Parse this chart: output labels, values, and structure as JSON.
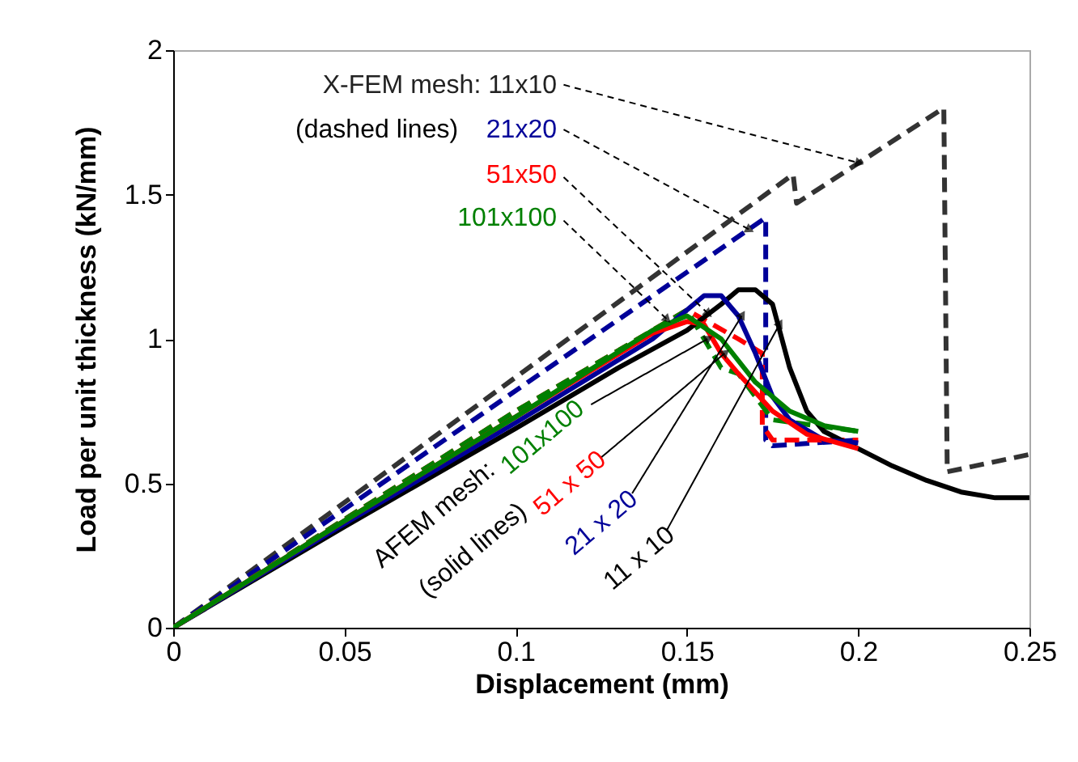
{
  "chart_data": {
    "type": "line",
    "xlabel": "Displacement (mm)",
    "ylabel": "Load per unit thickness (kN/mm)",
    "xlim": [
      0,
      0.25
    ],
    "xticks": [
      0,
      0.05,
      0.1,
      0.15,
      0.2,
      0.25
    ],
    "ylim": [
      0,
      2
    ],
    "yticks": [
      0,
      0.5,
      1,
      1.5,
      2
    ],
    "series": [
      {
        "color": "#333333",
        "line_style": "dashed",
        "x": [
          0,
          0.181,
          0.182,
          0.225,
          0.226,
          0.25
        ],
        "values": [
          0,
          1.57,
          1.47,
          1.8,
          0.54,
          0.6
        ]
      },
      {
        "color": "#000099",
        "line_style": "dashed",
        "x": [
          0,
          0.173,
          0.173,
          0.175,
          0.2
        ],
        "values": [
          0,
          1.42,
          0.65,
          0.63,
          0.65
        ]
      },
      {
        "color": "#ff0000",
        "line_style": "dashed",
        "x": [
          0,
          0.1,
          0.15,
          0.165,
          0.172,
          0.172,
          0.175,
          0.2
        ],
        "values": [
          0,
          0.75,
          1.1,
          1.0,
          0.95,
          0.7,
          0.65,
          0.65
        ]
      },
      {
        "color": "#008000",
        "line_style": "dashed",
        "x": [
          0,
          0.1,
          0.15,
          0.16,
          0.165,
          0.17,
          0.175,
          0.2
        ],
        "values": [
          0,
          0.75,
          1.1,
          0.9,
          0.88,
          0.8,
          0.72,
          0.68
        ]
      },
      {
        "color": "#000000",
        "line_style": "solid",
        "x": [
          0,
          0.05,
          0.1,
          0.13,
          0.15,
          0.16,
          0.165,
          0.17,
          0.175,
          0.18,
          0.185,
          0.19,
          0.2,
          0.21,
          0.22,
          0.23,
          0.24,
          0.25
        ],
        "values": [
          0,
          0.35,
          0.69,
          0.9,
          1.03,
          1.12,
          1.17,
          1.17,
          1.12,
          0.9,
          0.75,
          0.68,
          0.62,
          0.56,
          0.51,
          0.47,
          0.45,
          0.45
        ]
      },
      {
        "color": "#000099",
        "line_style": "solid",
        "x": [
          0,
          0.05,
          0.1,
          0.14,
          0.15,
          0.155,
          0.16,
          0.165,
          0.17,
          0.175,
          0.18,
          0.19,
          0.2
        ],
        "values": [
          0,
          0.36,
          0.71,
          1.0,
          1.1,
          1.15,
          1.15,
          1.08,
          0.95,
          0.8,
          0.72,
          0.65,
          0.64
        ]
      },
      {
        "color": "#ff0000",
        "line_style": "solid",
        "x": [
          0,
          0.05,
          0.1,
          0.14,
          0.15,
          0.155,
          0.16,
          0.165,
          0.175,
          0.185,
          0.2
        ],
        "values": [
          0,
          0.37,
          0.73,
          1.02,
          1.06,
          1.05,
          0.95,
          0.88,
          0.75,
          0.67,
          0.62
        ]
      },
      {
        "color": "#008000",
        "line_style": "solid",
        "x": [
          0,
          0.05,
          0.1,
          0.14,
          0.15,
          0.16,
          0.17,
          0.18,
          0.19,
          0.2
        ],
        "values": [
          0,
          0.37,
          0.73,
          1.03,
          1.08,
          1.0,
          0.85,
          0.75,
          0.7,
          0.68
        ]
      }
    ],
    "annotations": [
      {
        "text": "X-FEM mesh: 11x10",
        "x": 0.2,
        "y": 1.61
      },
      "(dashed lines)",
      {
        "text": "21x20",
        "x": 0.168,
        "y": 1.38
      },
      {
        "text": "51x50",
        "x": 0.156,
        "y": 1.09
      },
      {
        "text": "101x100",
        "x": 0.144,
        "y": 1.07
      },
      "AFEM mesh:",
      {
        "text": "101x100",
        "x": 0.156,
        "y": 1.0
      },
      "(solid lines)",
      {
        "text": "51 x 50",
        "x": 0.161,
        "y": 0.95
      },
      {
        "text": "21 x 20",
        "x": 0.166,
        "y": 1.08
      },
      {
        "text": "11 x 10",
        "x": 0.177,
        "y": 1.05
      }
    ]
  }
}
